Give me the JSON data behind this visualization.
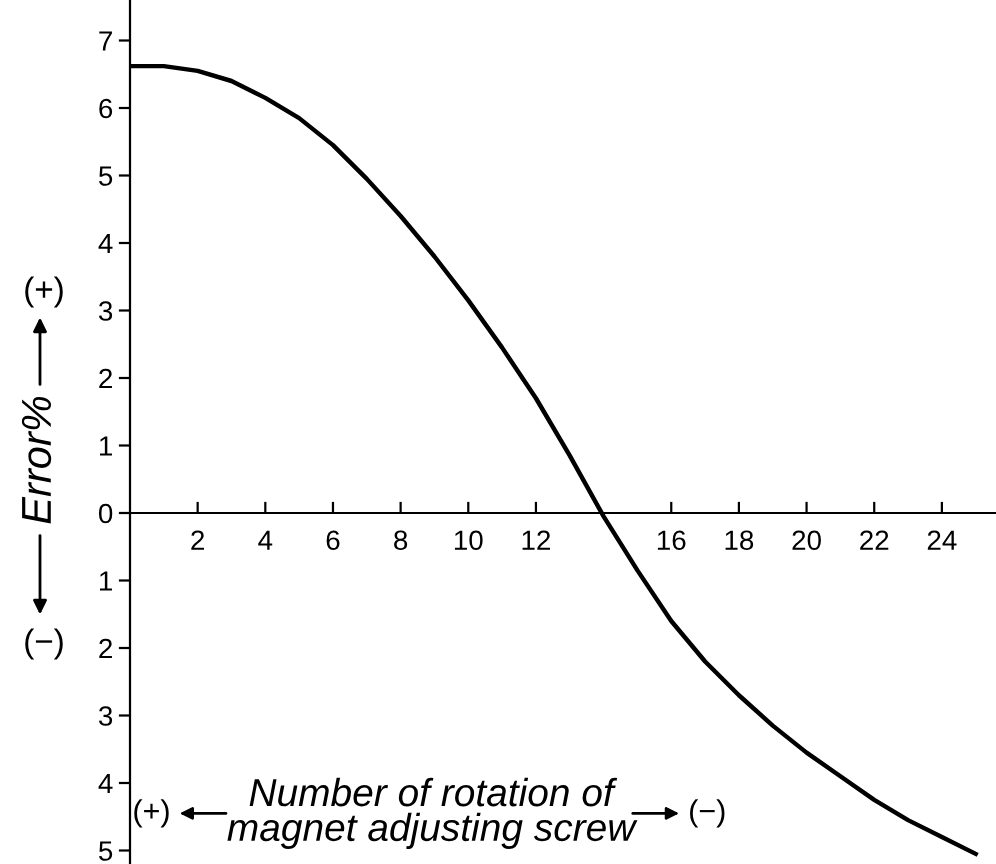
{
  "chart_data": {
    "type": "line",
    "x": [
      0,
      1,
      2,
      3,
      4,
      5,
      6,
      7,
      8,
      9,
      10,
      11,
      12,
      13,
      14,
      15,
      16,
      17,
      18,
      19,
      20,
      21,
      22,
      23,
      24,
      25
    ],
    "series": [
      {
        "color": "#000000",
        "values": [
          6.62,
          6.62,
          6.55,
          6.4,
          6.15,
          5.85,
          5.45,
          4.95,
          4.4,
          3.8,
          3.15,
          2.45,
          1.7,
          0.85,
          -0.05,
          -0.85,
          -1.6,
          -2.2,
          -2.7,
          -3.15,
          -3.55,
          -3.9,
          -4.25,
          -4.55,
          -4.8,
          -5.05
        ]
      }
    ],
    "xlabel": "Number of rotation of\nmagnet adjusting screw",
    "ylabel": "Error%",
    "annotations": [
      "(+)",
      "(−)",
      "(+)",
      "(−)"
    ],
    "xlim": [
      0,
      25.6
    ],
    "ylim": [
      -5.2,
      7.6
    ],
    "xticks": [
      2,
      4,
      6,
      8,
      10,
      12,
      16,
      18,
      20,
      22,
      24
    ],
    "yticks": [
      {
        "value": -5,
        "label": "5"
      },
      {
        "value": -4,
        "label": "4"
      },
      {
        "value": -3,
        "label": "3"
      },
      {
        "value": -2,
        "label": "2"
      },
      {
        "value": -1,
        "label": "1"
      },
      0,
      1,
      2,
      3,
      4,
      5,
      6,
      7
    ],
    "grid": false,
    "legend": false,
    "marker": "none",
    "line_style": "solid"
  }
}
